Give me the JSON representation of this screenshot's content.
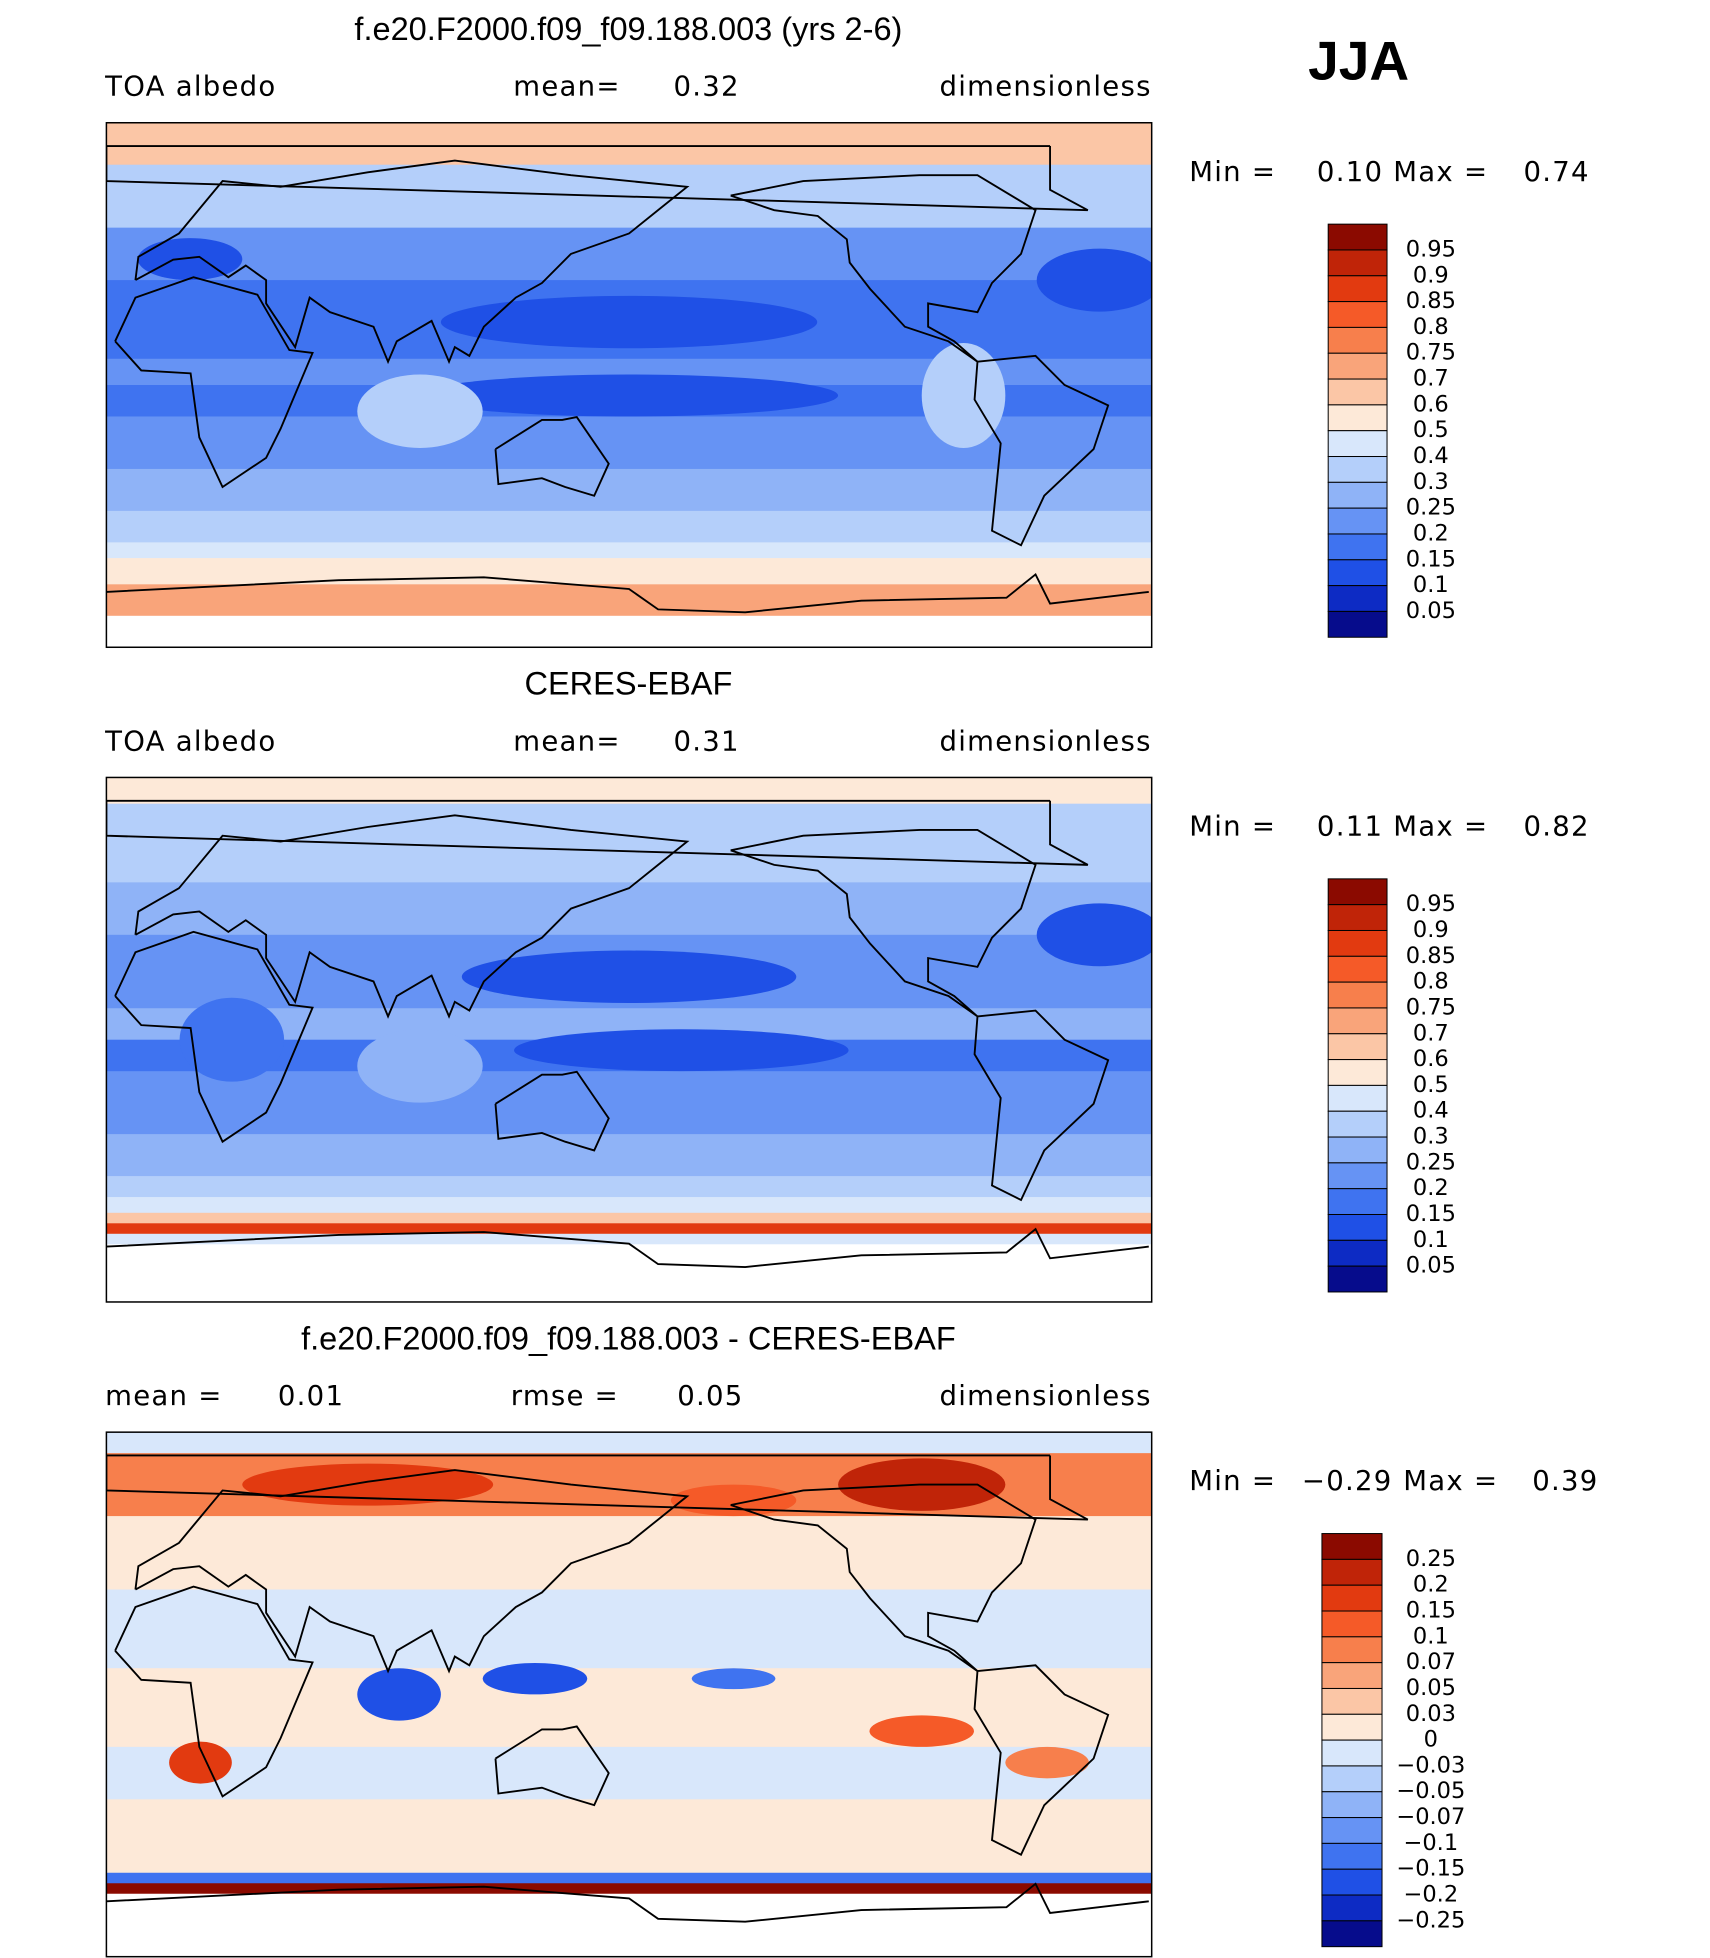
{
  "season": "JJA",
  "panels": [
    {
      "title": "f.e20.F2000.f09_f09.188.003 (yrs 2-6)",
      "header": [
        "TOA albedo",
        "mean=",
        "0.32",
        "dimensionless"
      ],
      "min_label": "Min =",
      "min": "0.10",
      "max_label": "Max =",
      "max": "0.74",
      "colorbar": {
        "labels": [
          "0.95",
          "0.9",
          "0.85",
          "0.8",
          "0.75",
          "0.7",
          "0.6",
          "0.5",
          "0.4",
          "0.3",
          "0.25",
          "0.2",
          "0.15",
          "0.1",
          "0.05"
        ],
        "colors": [
          "#8b0a00",
          "#c02408",
          "#e23a10",
          "#f55a28",
          "#f77f4c",
          "#f9a47a",
          "#fbc6a6",
          "#fde9d8",
          "#d8e7fb",
          "#b4cffa",
          "#8fb3f7",
          "#6693f4",
          "#3f73f0",
          "#1f50e6",
          "#0d2bc4",
          "#060c8c"
        ]
      }
    },
    {
      "title": "CERES-EBAF",
      "header": [
        "TOA albedo",
        "mean=",
        "0.31",
        "dimensionless"
      ],
      "min_label": "Min =",
      "min": "0.11",
      "max_label": "Max =",
      "max": "0.82",
      "colorbar": {
        "labels": [
          "0.95",
          "0.9",
          "0.85",
          "0.8",
          "0.75",
          "0.7",
          "0.6",
          "0.5",
          "0.4",
          "0.3",
          "0.25",
          "0.2",
          "0.15",
          "0.1",
          "0.05"
        ],
        "colors": [
          "#8b0a00",
          "#c02408",
          "#e23a10",
          "#f55a28",
          "#f77f4c",
          "#f9a47a",
          "#fbc6a6",
          "#fde9d8",
          "#d8e7fb",
          "#b4cffa",
          "#8fb3f7",
          "#6693f4",
          "#3f73f0",
          "#1f50e6",
          "#0d2bc4",
          "#060c8c"
        ]
      }
    },
    {
      "title": "f.e20.F2000.f09_f09.188.003 - CERES-EBAF",
      "header": [
        "mean =",
        "0.01",
        "rmse =",
        "0.05",
        "dimensionless"
      ],
      "min_label": "Min =",
      "min": "−0.29",
      "max_label": "Max =",
      "max": "0.39",
      "colorbar": {
        "labels": [
          "0.25",
          "0.2",
          "0.15",
          "0.1",
          "0.07",
          "0.05",
          "0.03",
          "0",
          "−0.03",
          "−0.05",
          "−0.07",
          "−0.1",
          "−0.15",
          "−0.2",
          "−0.25"
        ],
        "colors": [
          "#8b0a00",
          "#c02408",
          "#e23a10",
          "#f55a28",
          "#f77f4c",
          "#f9a47a",
          "#fbc6a6",
          "#fde9d8",
          "#d8e7fb",
          "#b4cffa",
          "#8fb3f7",
          "#6693f4",
          "#3f73f0",
          "#1f50e6",
          "#0d2bc4",
          "#060c8c"
        ]
      }
    }
  ]
}
